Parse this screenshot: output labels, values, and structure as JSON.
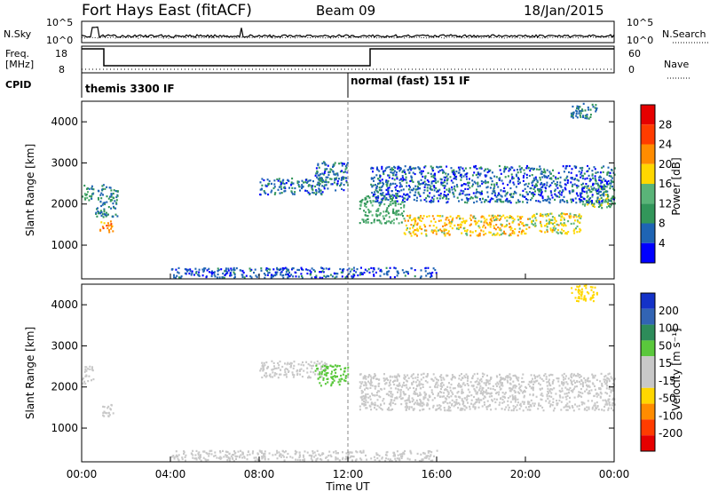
{
  "header": {
    "station": "Fort Hays East (fitACF)",
    "beam": "Beam 09",
    "date": "18/Jan/2015"
  },
  "noise_panel": {
    "left_label": "N.Sky",
    "right_label": "N.Search",
    "left_ticks": [
      "10^5",
      "10^0"
    ],
    "right_ticks": [
      "10^5",
      "10^0"
    ]
  },
  "freq_panel": {
    "left_label_1": "Freq.",
    "left_label_2": "[MHz]",
    "right_label": "Nave",
    "left_ticks": [
      "18",
      "8"
    ],
    "right_ticks": [
      "60",
      "0"
    ]
  },
  "cpid": {
    "label": "CPID",
    "modes": [
      {
        "name": "themis 3300 IF",
        "start_hour": 0
      },
      {
        "name": "normal (fast) 151 IF",
        "start_hour": 13
      }
    ]
  },
  "colors": {
    "power_scale": [
      "#0000ff",
      "#1e64b4",
      "#32965a",
      "#5ab478",
      "#ffd700",
      "#ff8c00",
      "#ff3c00",
      "#e60000"
    ],
    "velocity_scale": [
      "#e60000",
      "#ff3c00",
      "#ff8c00",
      "#ffd700",
      "#c8c8c8",
      "#c8c8c8",
      "#5ac83c",
      "#2d8c5a",
      "#3264b4",
      "#1432c8"
    ],
    "ground_scatter": "#c8c8c8"
  },
  "chart_data": [
    {
      "type": "heatmap",
      "name": "power",
      "xlabel": "Time UT",
      "ylabel": "Slant Range [km]",
      "xlim": [
        0,
        24
      ],
      "ylim": [
        180,
        4500
      ],
      "yticks": [
        "1000",
        "2000",
        "3000",
        "4000"
      ],
      "colorbar": {
        "label": "Power [dB]",
        "range": [
          0,
          32
        ],
        "ticks": [
          "4",
          "8",
          "12",
          "16",
          "20",
          "24",
          "28"
        ]
      },
      "scatter_bands": [
        {
          "t_start": 0,
          "t_end": 0.5,
          "range_center": 2300,
          "range_width": 450,
          "value": 10
        },
        {
          "t_start": 0.8,
          "t_end": 1.4,
          "range_center": 1450,
          "range_width": 300,
          "value": 22
        },
        {
          "t_start": 0.6,
          "t_end": 1.6,
          "range_center": 2100,
          "range_width": 800,
          "value": 8
        },
        {
          "t_start": 8.0,
          "t_end": 11.0,
          "range_center": 2450,
          "range_width": 400,
          "value": 7
        },
        {
          "t_start": 10.5,
          "t_end": 12.0,
          "range_center": 2700,
          "range_width": 700,
          "value": 7
        },
        {
          "t_start": 12.5,
          "t_end": 14.5,
          "range_center": 1900,
          "range_width": 700,
          "value": 12
        },
        {
          "t_start": 14.5,
          "t_end": 20.0,
          "range_center": 1500,
          "range_width": 500,
          "value": 19
        },
        {
          "t_start": 20.0,
          "t_end": 22.5,
          "range_center": 1550,
          "range_width": 500,
          "value": 17
        },
        {
          "t_start": 22.5,
          "t_end": 24.0,
          "range_center": 2200,
          "range_width": 550,
          "value": 13
        },
        {
          "t_start": 13.0,
          "t_end": 24.0,
          "range_center": 2500,
          "range_width": 900,
          "value": 6
        },
        {
          "t_start": 22.0,
          "t_end": 23.2,
          "range_center": 4300,
          "range_width": 400,
          "value": 8
        },
        {
          "t_start": 4.0,
          "t_end": 16.0,
          "range_center": 350,
          "range_width": 250,
          "value": 5
        }
      ]
    },
    {
      "type": "heatmap",
      "name": "velocity",
      "xlabel": "Time UT",
      "ylabel": "Slant Range [km]",
      "xlim": [
        0,
        24
      ],
      "ylim": [
        180,
        4500
      ],
      "yticks": [
        "1000",
        "2000",
        "3000",
        "4000"
      ],
      "xticks": [
        "00:00",
        "04:00",
        "08:00",
        "12:00",
        "16:00",
        "20:00",
        "00:00"
      ],
      "colorbar": {
        "label": "Velocity [m s⁻¹]",
        "ticks": [
          "200",
          "100",
          "50",
          "15",
          "-15",
          "-50",
          "-100",
          "-200"
        ]
      },
      "scatter_bands": [
        {
          "t_start": 0,
          "t_end": 0.5,
          "range_center": 2300,
          "range_width": 450,
          "value": "gs"
        },
        {
          "t_start": 0.8,
          "t_end": 1.4,
          "range_center": 1450,
          "range_width": 300,
          "value": "gs"
        },
        {
          "t_start": 8.0,
          "t_end": 11.0,
          "range_center": 2450,
          "range_width": 400,
          "value": "gs"
        },
        {
          "t_start": 10.5,
          "t_end": 12.0,
          "range_center": 2300,
          "range_width": 500,
          "value": 60
        },
        {
          "t_start": 12.5,
          "t_end": 24.0,
          "range_center": 1900,
          "range_width": 900,
          "value": "gs"
        },
        {
          "t_start": 22.0,
          "t_end": 23.2,
          "range_center": 4300,
          "range_width": 400,
          "value": -60
        },
        {
          "t_start": 4.0,
          "t_end": 16.0,
          "range_center": 350,
          "range_width": 250,
          "value": -40
        }
      ]
    }
  ]
}
